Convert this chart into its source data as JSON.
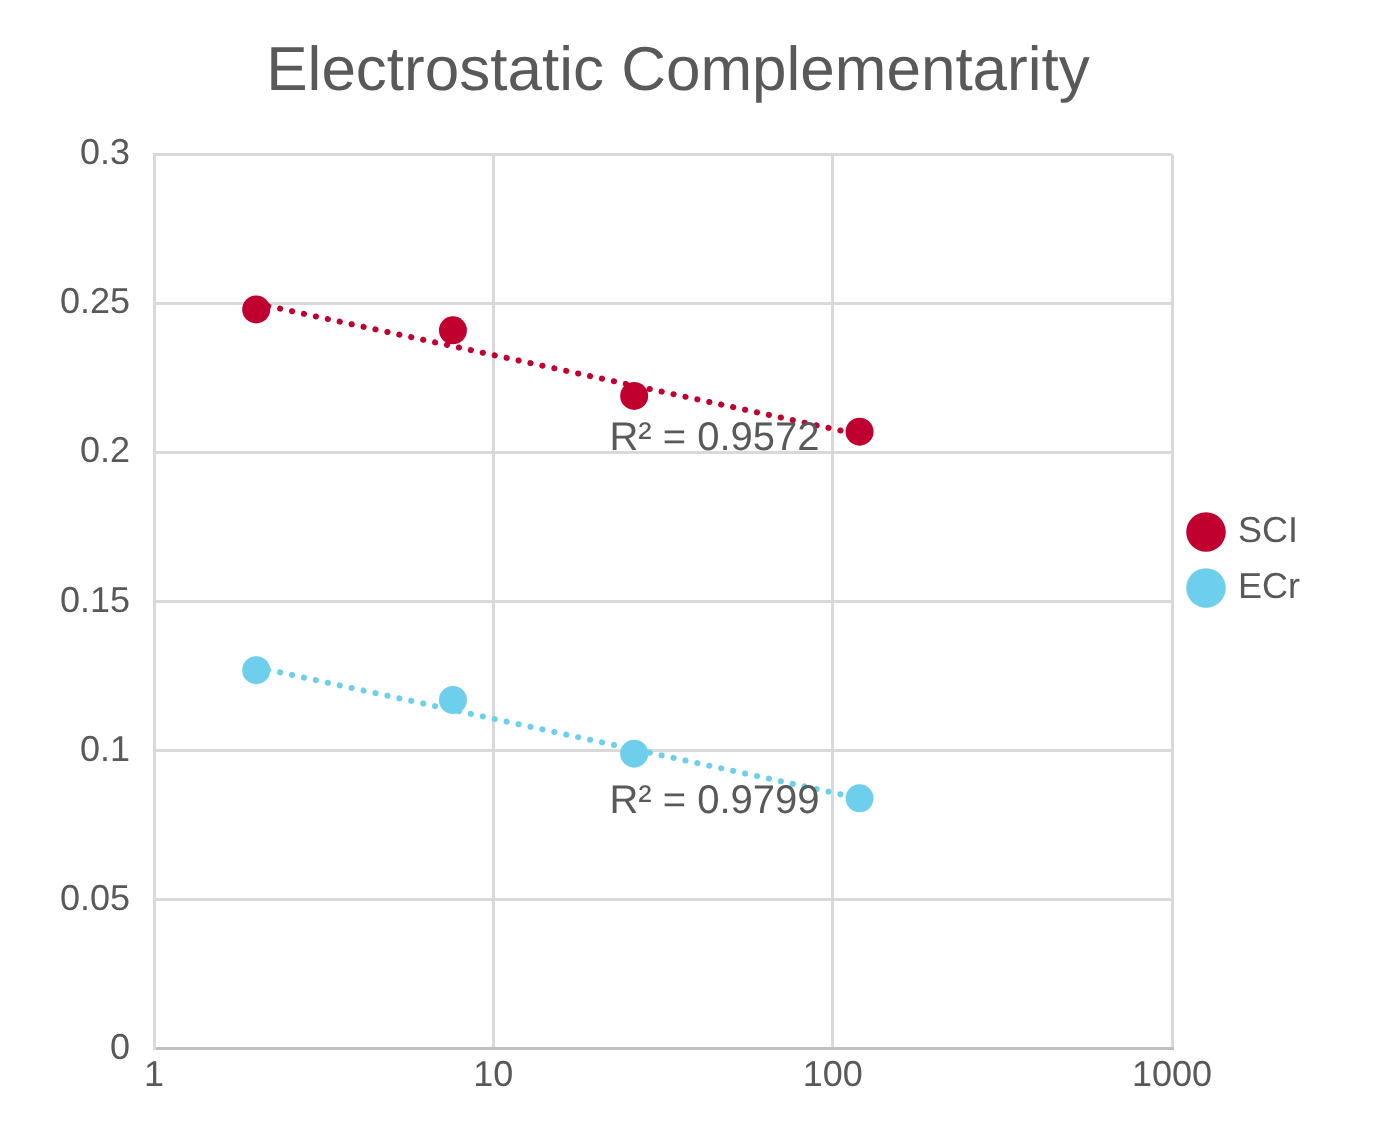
{
  "chart_data": {
    "type": "scatter",
    "title": "Electrostatic Complementarity",
    "log": "x",
    "xlim": [
      1,
      1000
    ],
    "xticks": [
      1,
      10,
      100,
      1000
    ],
    "ylim": [
      0,
      0.3
    ],
    "yticks": [
      0,
      0.05,
      0.1,
      0.15,
      0.2,
      0.25,
      0.3
    ],
    "grid": true,
    "legend": "right",
    "marker": "circle",
    "series": [
      {
        "name": "SCI",
        "color": "#c0002e",
        "x": [
          2,
          7.6,
          26,
          120
        ],
        "values": [
          0.248,
          0.241,
          0.219,
          0.207
        ]
      },
      {
        "name": "ECr",
        "color": "#6dcfeb",
        "x": [
          2,
          7.6,
          26,
          120
        ],
        "values": [
          0.127,
          0.117,
          0.099,
          0.084
        ]
      },
      {
        "type": "line",
        "color": "#c0002e",
        "marker": "none",
        "line_style": "dotted",
        "x": [
          2,
          120
        ],
        "values": [
          0.25,
          0.206
        ]
      },
      {
        "type": "line",
        "color": "#6dcfeb",
        "marker": "none",
        "line_style": "dotted",
        "x": [
          2,
          120
        ],
        "values": [
          0.128,
          0.084
        ]
      }
    ],
    "annotations": [
      "R² = 0.9572",
      "R² = 0.9799"
    ]
  }
}
